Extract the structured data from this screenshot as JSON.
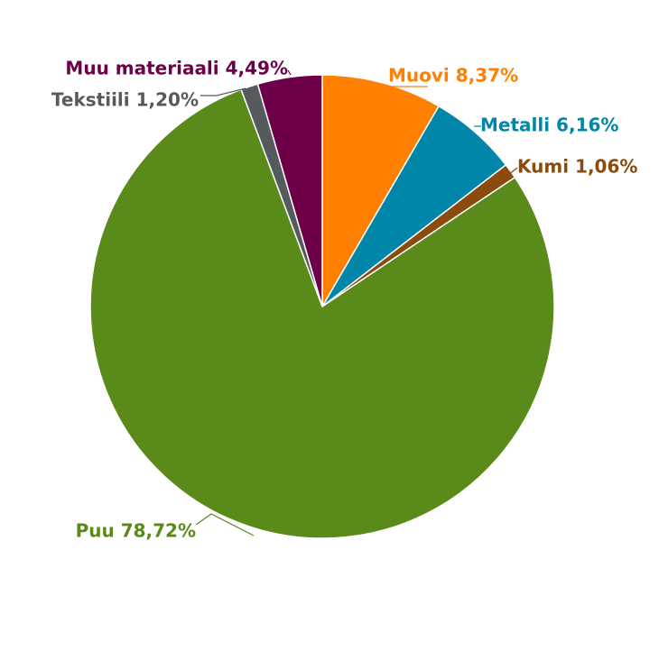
{
  "chart_data": {
    "type": "pie",
    "title": "",
    "slices": [
      {
        "label": "Muovi",
        "value": 8.37,
        "display": "Muovi 8,37%",
        "color": "#ff8000"
      },
      {
        "label": "Metalli",
        "value": 6.16,
        "display": "Metalli 6,16%",
        "color": "#0086a8"
      },
      {
        "label": "Kumi",
        "value": 1.06,
        "display": "Kumi 1,06%",
        "color": "#8a4b0c"
      },
      {
        "label": "Puu",
        "value": 78.72,
        "display": "Puu 78,72%",
        "color": "#5a8a1a"
      },
      {
        "label": "Tekstiili",
        "value": 1.2,
        "display": "Tekstiili 1,20%",
        "color": "#555a5f"
      },
      {
        "label": "Muu materiaali",
        "value": 4.49,
        "display": "Muu materiaali 4,49%",
        "color": "#6e0049"
      }
    ],
    "start_angle": "12 o'clock",
    "direction": "clockwise",
    "legend": "none"
  }
}
